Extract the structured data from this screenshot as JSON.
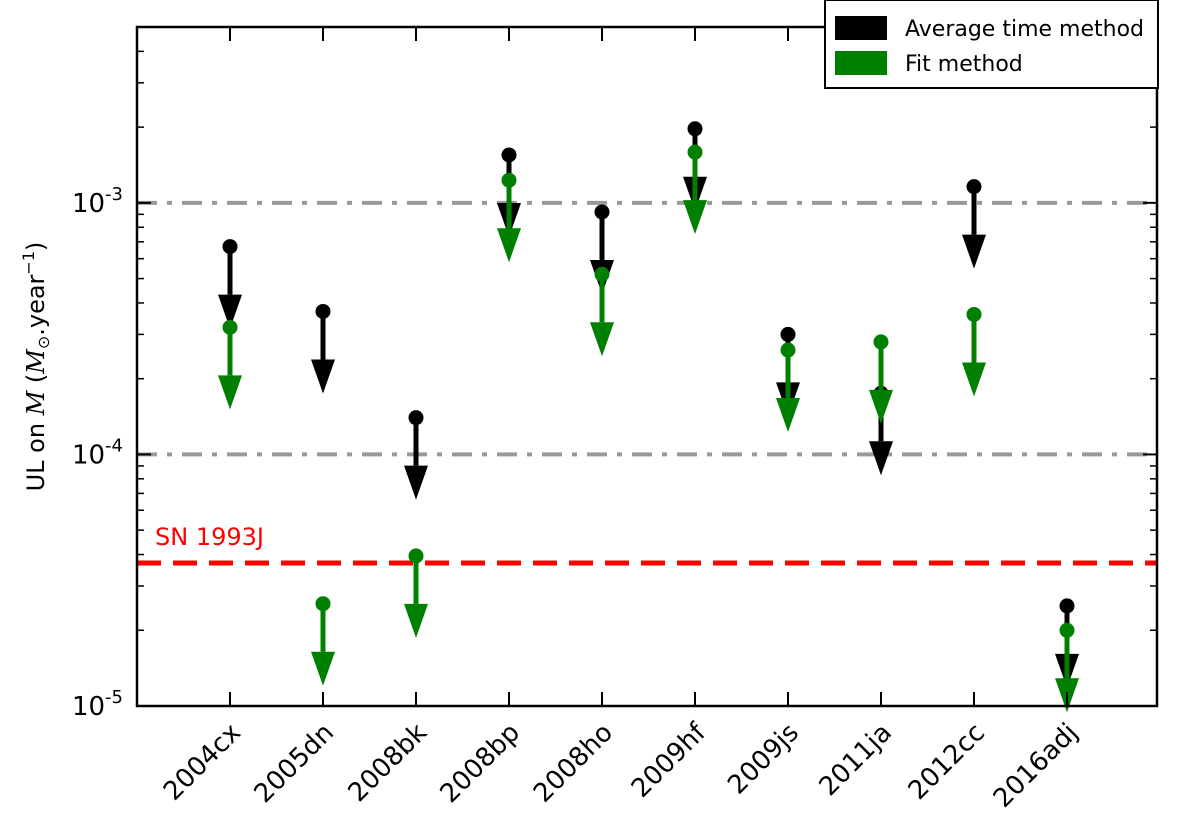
{
  "chart_data": {
    "type": "scatter",
    "title": "",
    "xlabel": "",
    "ylabel": "UL on Ṁ (M⊙.year⁻¹)",
    "ylabel_parts": {
      "prefix": "UL on ",
      "symbol": "M",
      "paren_open": " (",
      "unit": "M",
      "unit_sub": "⊙",
      "unit_rest": ".year",
      "unit_sup": "−1",
      "paren_close": ")"
    },
    "yscale": "log",
    "ylim": [
      1e-05,
      0.005
    ],
    "categories": [
      "2004cx",
      "2005dn",
      "2008bk",
      "2008bp",
      "2008ho",
      "2009hf",
      "2009js",
      "2011ja",
      "2012cc",
      "2016adj"
    ],
    "series": [
      {
        "name": "Average time method",
        "color": "#000000",
        "marker": "circle-with-down-arrow",
        "values": [
          0.00067,
          0.00037,
          0.00014,
          0.00155,
          0.00092,
          0.00197,
          0.0003,
          0.000175,
          0.00116,
          2.5e-05
        ]
      },
      {
        "name": "Fit method",
        "color": "#008000",
        "marker": "circle-with-down-arrow",
        "values": [
          0.00032,
          null,
          null,
          0.00123,
          0.00052,
          0.00159,
          0.00026,
          0.00028,
          0.00036,
          2e-05
        ]
      },
      {
        "name": "Fit method (extra)",
        "color": "#008000",
        "marker": "circle-with-down-arrow",
        "legend": false,
        "values": [
          null,
          2.55e-05,
          3.95e-05,
          null,
          null,
          null,
          null,
          null,
          null,
          null
        ]
      }
    ],
    "y_ticks": [
      {
        "value": 0.001,
        "base": "10",
        "exp": "-3"
      },
      {
        "value": 0.0001,
        "base": "10",
        "exp": "-4"
      },
      {
        "value": 1e-05,
        "base": "10",
        "exp": "-5"
      }
    ],
    "reference_lines": [
      {
        "value": 0.001,
        "style": "dash-dot",
        "color": "#999999"
      },
      {
        "value": 0.0001,
        "style": "dash-dot",
        "color": "#999999"
      },
      {
        "value": 3.7e-05,
        "style": "dashed",
        "color": "#ff0000",
        "label": "SN 1993J"
      }
    ],
    "legend": {
      "position": "top-right",
      "entries": [
        {
          "label": "Average time method",
          "color": "#000000"
        },
        {
          "label": "Fit method",
          "color": "#008000"
        }
      ]
    }
  }
}
